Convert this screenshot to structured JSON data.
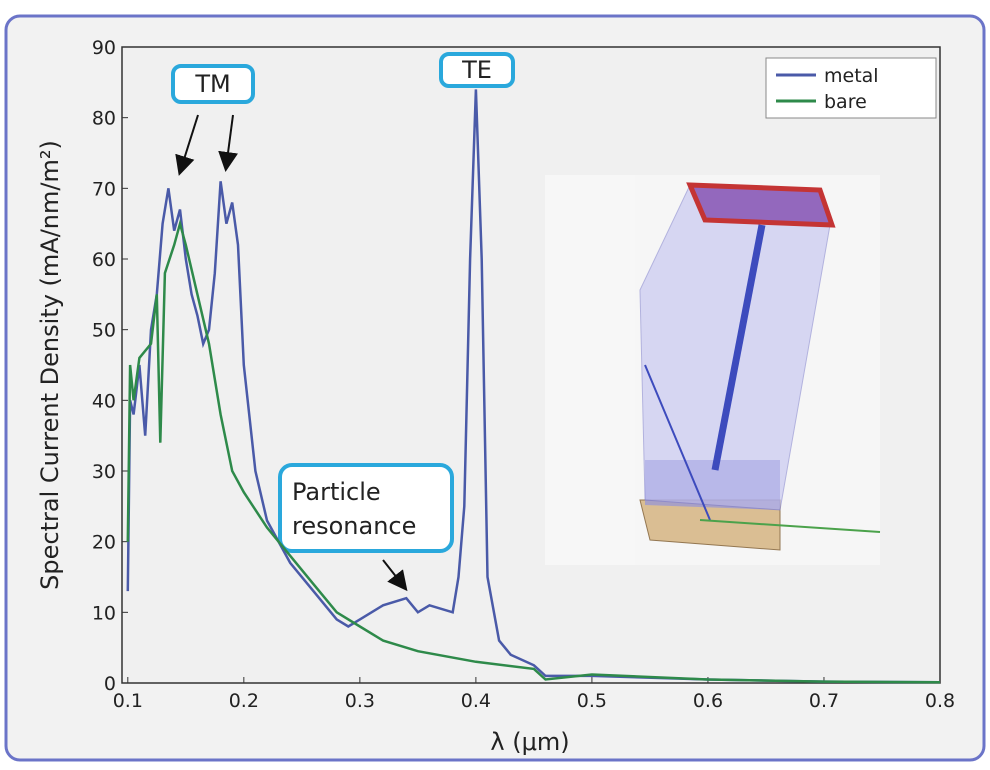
{
  "chart_data": {
    "type": "line",
    "xlabel": "λ (μm)",
    "ylabel": "Spectral Current Density (mA/nm/m²)",
    "xlim": [
      0.095,
      0.8
    ],
    "ylim": [
      0,
      90
    ],
    "xticks": [
      0.1,
      0.2,
      0.3,
      0.4,
      0.5,
      0.6,
      0.7,
      0.8
    ],
    "yticks": [
      0,
      10,
      20,
      30,
      40,
      50,
      60,
      70,
      80,
      90
    ],
    "legend": "upper right",
    "annotations": [
      "TM",
      "TE",
      "Particle\nresonance"
    ],
    "series": [
      {
        "name": "metal",
        "color": "#4a5aa8",
        "x": [
          0.1,
          0.102,
          0.105,
          0.11,
          0.115,
          0.12,
          0.125,
          0.13,
          0.135,
          0.14,
          0.145,
          0.15,
          0.155,
          0.16,
          0.165,
          0.17,
          0.175,
          0.18,
          0.185,
          0.19,
          0.195,
          0.2,
          0.21,
          0.22,
          0.24,
          0.26,
          0.28,
          0.29,
          0.3,
          0.32,
          0.34,
          0.35,
          0.36,
          0.38,
          0.385,
          0.39,
          0.395,
          0.4,
          0.405,
          0.41,
          0.42,
          0.43,
          0.45,
          0.46,
          0.5,
          0.6,
          0.7,
          0.8
        ],
        "values": [
          13,
          40,
          38,
          45,
          35,
          50,
          55,
          65,
          70,
          64,
          67,
          60,
          55,
          52,
          48,
          50,
          58,
          71,
          65,
          68,
          62,
          45,
          30,
          23,
          17,
          13,
          9,
          8,
          9,
          11,
          12,
          10,
          11,
          10,
          15,
          25,
          60,
          84,
          60,
          15,
          6,
          4,
          2.5,
          1,
          1,
          0.5,
          0.2,
          0.1
        ]
      },
      {
        "name": "bare",
        "color": "#2e8a4a",
        "x": [
          0.1,
          0.102,
          0.105,
          0.11,
          0.12,
          0.125,
          0.128,
          0.132,
          0.14,
          0.145,
          0.15,
          0.16,
          0.17,
          0.18,
          0.19,
          0.2,
          0.22,
          0.24,
          0.26,
          0.28,
          0.3,
          0.32,
          0.35,
          0.4,
          0.45,
          0.46,
          0.5,
          0.6,
          0.7,
          0.8
        ],
        "values": [
          20,
          45,
          40,
          46,
          48,
          55,
          34,
          58,
          62,
          65,
          62,
          55,
          48,
          38,
          30,
          27,
          22,
          18,
          14,
          10,
          8,
          6,
          4.5,
          3,
          2,
          0.5,
          1.2,
          0.5,
          0.2,
          0.1
        ]
      }
    ]
  }
}
